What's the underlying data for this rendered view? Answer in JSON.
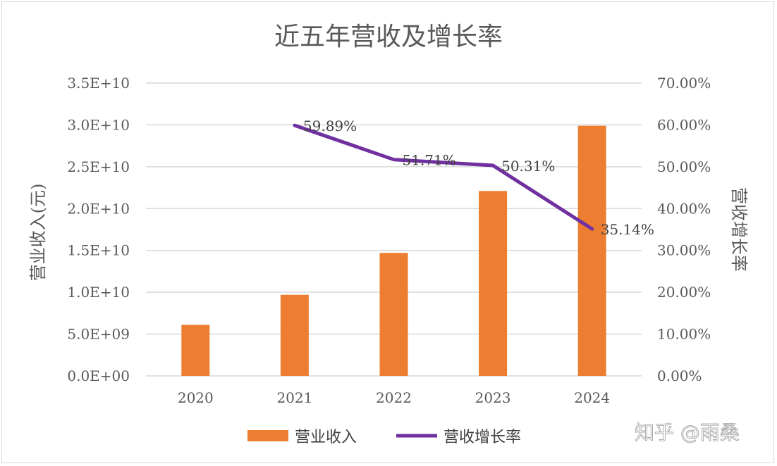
{
  "watermark": "知乎 @雨桑",
  "colors": {
    "bar": "#ED7D31",
    "line": "#7030A0",
    "grid": "#d9d9d9",
    "text": "#595959"
  },
  "chart_data": {
    "type": "bar+line",
    "title": "近五年营收及增长率",
    "categories": [
      "2020",
      "2021",
      "2022",
      "2023",
      "2024"
    ],
    "y_left": {
      "label": "营业收入(元)",
      "range": [
        0,
        35000000000
      ],
      "ticks": [
        0,
        5000000000,
        10000000000,
        15000000000,
        20000000000,
        25000000000,
        30000000000,
        35000000000
      ],
      "tick_labels": [
        "0.0E+00",
        "5.0E+09",
        "1.0E+10",
        "1.5E+10",
        "2.0E+10",
        "2.5E+10",
        "3.0E+10",
        "3.5E+10"
      ]
    },
    "y_right": {
      "label": "营收增长率",
      "range": [
        0,
        70
      ],
      "ticks": [
        0,
        10,
        20,
        30,
        40,
        50,
        60,
        70
      ],
      "tick_labels": [
        "0.00%",
        "10.00%",
        "20.00%",
        "30.00%",
        "40.00%",
        "50.00%",
        "60.00%",
        "70.00%"
      ]
    },
    "series": [
      {
        "name": "营业收入",
        "type": "bar",
        "axis": "left",
        "values": [
          6100000000,
          9700000000,
          14700000000,
          22100000000,
          29900000000
        ]
      },
      {
        "name": "营收增长率",
        "type": "line",
        "axis": "right",
        "values": [
          null,
          59.89,
          51.71,
          50.31,
          35.14
        ],
        "labels": [
          null,
          "59.89%",
          "51.71%",
          "50.31%",
          "35.14%"
        ]
      }
    ],
    "grid": true,
    "legend_position": "bottom"
  }
}
